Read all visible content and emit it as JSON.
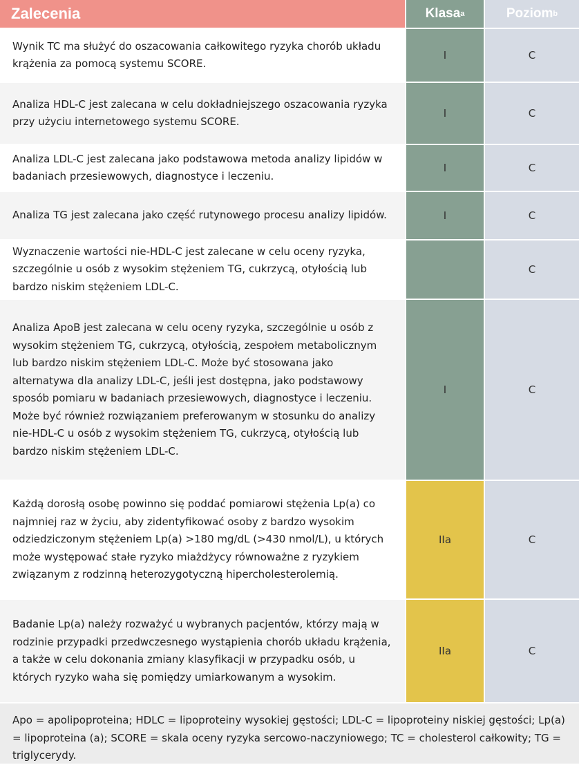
{
  "header": {
    "recommendations": "Zalecenia",
    "class": "Klasa",
    "class_sup": "a",
    "level": "Poziom",
    "level_sup": "b"
  },
  "colors": {
    "header_red": "#f0928a",
    "class_I": "#87a092",
    "class_IIa": "#e3c44b",
    "level_bg": "#d6dbe4"
  },
  "rows": [
    {
      "text": "Wynik TC ma służyć do oszacowania całkowitego ryzyka chorób układu krążenia za pomocą systemu SCORE.",
      "class": "I",
      "level": "C"
    },
    {
      "text": "Analiza HDL-C jest zalecana w celu dokładniejszego oszacowania ryzyka przy użyciu internetowego systemu SCORE.",
      "class": "I",
      "level": "C"
    },
    {
      "text": "Analiza LDL-C jest zalecana jako podstawowa metoda analizy lipidów w badaniach przesiewowych, diagnostyce i leczeniu.",
      "class": "I",
      "level": "C"
    },
    {
      "text": "Analiza TG jest zalecana jako część rutynowego procesu analizy lipidów.",
      "class": "I",
      "level": "C"
    },
    {
      "text": "Wyznaczenie wartości nie-HDL-C jest zalecane w celu oceny ryzyka, szczególnie u osób z wysokim stężeniem TG, cukrzycą, otyłością lub bardzo niskim stężeniem LDL-C.",
      "class": "",
      "level": "C"
    },
    {
      "text": "Analiza ApoB jest zalecana w celu oceny ryzyka, szczególnie u osób z wysokim stężeniem TG, cukrzycą, otyłością, zespołem metabolicznym lub bardzo niskim stężeniem LDL-C. Może być stosowana jako alternatywa dla analizy LDL-C, jeśli jest dostępna, jako podstawowy sposób pomiaru w badaniach przesiewowych, diagnostyce i leczeniu. Może być również rozwiązaniem preferowanym w stosunku do analizy nie-HDL-C u osób z wysokim stężeniem TG, cukrzycą, otyłością lub bardzo niskim stężeniem LDL-C.",
      "class": "I",
      "level": "C"
    },
    {
      "text": "Każdą dorosłą osobę powinno się poddać pomiarowi stężenia Lp(a) co najmniej raz w życiu, aby zidentyfikować osoby z bardzo wysokim odziedziczonym stężeniem Lp(a) >180 mg/dL (>430 nmol/L), u których może występować stałe ryzyko miażdżycy równoważne z ryzykiem związanym z rodzinną heterozygotyczną hipercholesterolemią.",
      "class": "IIa",
      "level": "C"
    },
    {
      "text": "Badanie Lp(a) należy rozważyć u wybranych pacjentów, którzy mają w rodzinie przypadki przedwczesnego wystąpienia chorób układu krążenia, a także w celu dokonania zmiany klasyfikacji w przypadku osób, u których ryzyko waha się pomiędzy umiarkowanym a wysokim.",
      "class": "IIa",
      "level": "C"
    }
  ],
  "footnote": "Apo = apolipoproteina; HDLC = lipoproteiny wysokiej gęstości; LDL-C = lipoproteiny niskiej gęstości; Lp(a) = lipoproteina (a); SCORE = skala oceny ryzyka sercowo-naczyniowego; TC = cholesterol całkowity; TG = triglycerydy."
}
